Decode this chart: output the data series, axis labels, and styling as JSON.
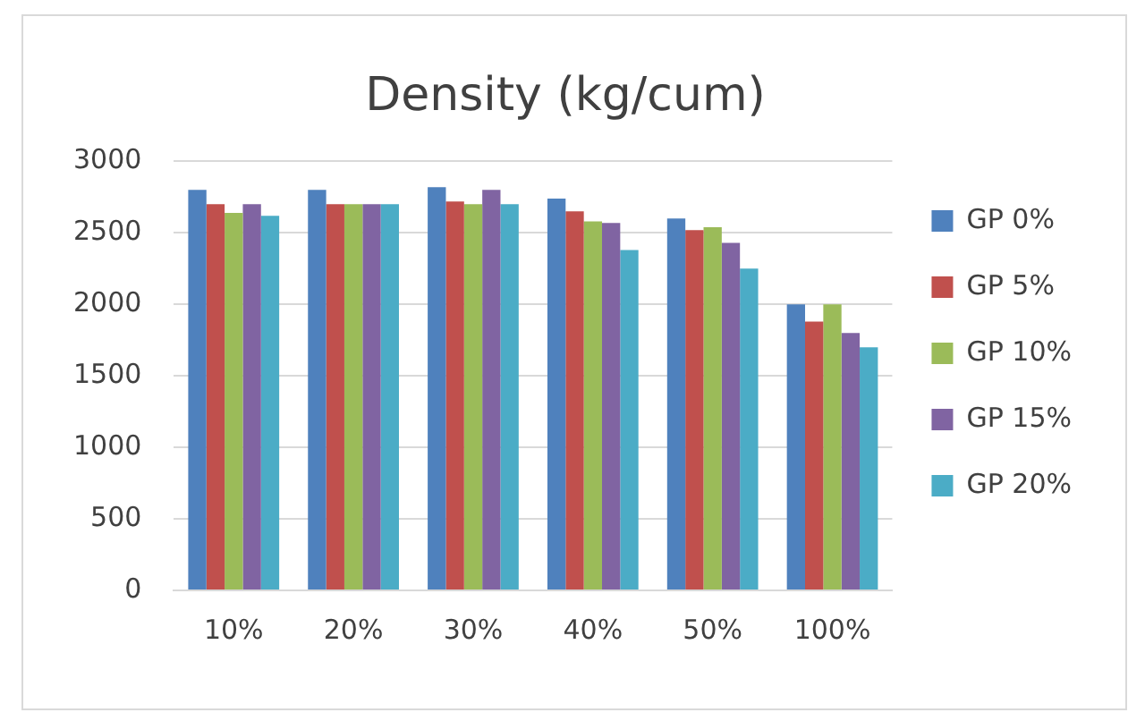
{
  "chart_data": {
    "type": "bar",
    "title": "Density (kg/cum)",
    "categories": [
      "10%",
      "20%",
      "30%",
      "40%",
      "50%",
      "100%"
    ],
    "series": [
      {
        "name": "GP 0%",
        "color": "#4f81bd",
        "values": [
          2800,
          2800,
          2820,
          2740,
          2600,
          2000
        ]
      },
      {
        "name": "GP 5%",
        "color": "#c0504d",
        "values": [
          2700,
          2700,
          2720,
          2650,
          2520,
          1880
        ]
      },
      {
        "name": "GP 10%",
        "color": "#9bbb59",
        "values": [
          2640,
          2700,
          2700,
          2580,
          2540,
          2000
        ]
      },
      {
        "name": "GP 15%",
        "color": "#8064a2",
        "values": [
          2700,
          2700,
          2800,
          2570,
          2430,
          1800
        ]
      },
      {
        "name": "GP 20%",
        "color": "#4bacc6",
        "values": [
          2620,
          2700,
          2700,
          2380,
          2250,
          1700
        ]
      }
    ],
    "ylim": [
      0,
      3000
    ],
    "yticks": [
      0,
      500,
      1000,
      1500,
      2000,
      2500,
      3000
    ],
    "grid": "y",
    "legend": "right"
  }
}
